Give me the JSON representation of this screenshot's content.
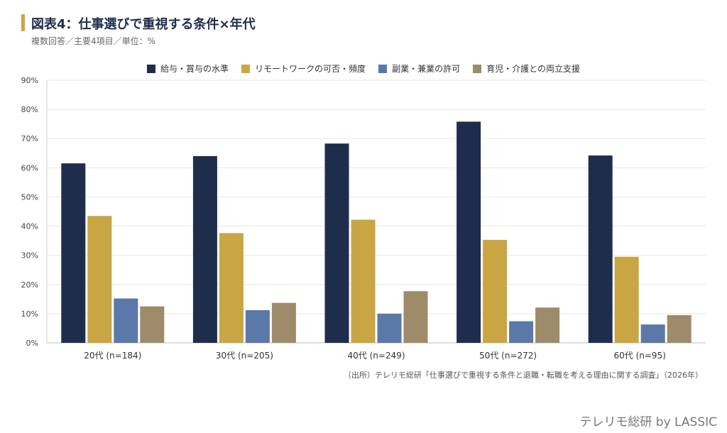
{
  "title": "図表4：仕事選びで重視する条件×年代",
  "subtitle": "複数回答／主要4項目／単位：%",
  "source": "（出所）テレリモ総研「仕事選びで重視する条件と退職・転職を考える理由に関する調査」（2026年）",
  "brand": "テレリモ総研 by LASSIC",
  "chart_data": {
    "type": "bar",
    "categories": [
      "20代 (n=184)",
      "30代 (n=205)",
      "40代 (n=249)",
      "50代 (n=272)",
      "60代 (n=95)"
    ],
    "series": [
      {
        "name": "給与・賞与の水準",
        "color": "#1f2d4d",
        "values": [
          61.5,
          64.0,
          68.3,
          75.8,
          64.2
        ]
      },
      {
        "name": "リモートワークの可否・頻度",
        "color": "#c9a643",
        "values": [
          43.5,
          37.6,
          42.2,
          35.3,
          29.5
        ]
      },
      {
        "name": "副業・兼業の許可",
        "color": "#5b79a8",
        "values": [
          15.2,
          11.2,
          10.0,
          7.4,
          6.3
        ]
      },
      {
        "name": "育児・介護との両立支援",
        "color": "#9e8b69",
        "values": [
          12.5,
          13.7,
          17.7,
          12.1,
          9.5
        ]
      }
    ],
    "yticks": [
      "0%",
      "10%",
      "20%",
      "30%",
      "40%",
      "50%",
      "60%",
      "70%",
      "80%",
      "90%"
    ],
    "ylim": [
      0,
      90
    ],
    "grid": true,
    "legend_position": "top-center"
  }
}
